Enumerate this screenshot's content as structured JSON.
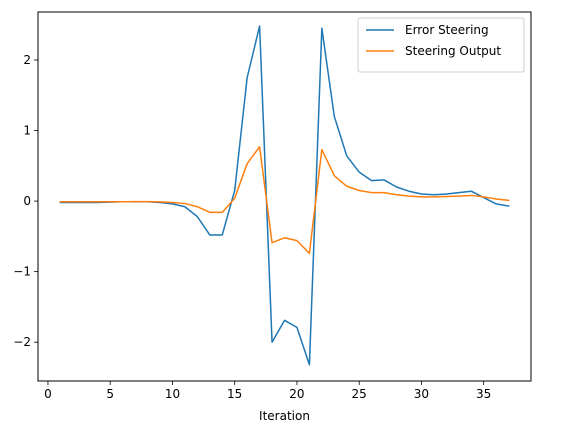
{
  "chart_data": {
    "type": "line",
    "title": "",
    "xlabel": "Iteration",
    "ylabel": "",
    "xlim": [
      -0.8,
      38.8
    ],
    "ylim": [
      -2.55,
      2.68
    ],
    "xticks": [
      0,
      5,
      10,
      15,
      20,
      25,
      30,
      35
    ],
    "yticks": [
      -2,
      -1,
      0,
      1,
      2
    ],
    "legend_position": "top-right",
    "grid": false,
    "x": [
      1,
      2,
      3,
      4,
      5,
      6,
      7,
      8,
      9,
      10,
      11,
      12,
      13,
      14,
      15,
      16,
      17,
      18,
      19,
      20,
      21,
      22,
      23,
      24,
      25,
      26,
      27,
      28,
      29,
      30,
      31,
      32,
      33,
      34,
      35,
      36,
      37
    ],
    "series": [
      {
        "name": "Error Steering",
        "color": "#1f77b4",
        "values": [
          -0.02,
          -0.02,
          -0.02,
          -0.02,
          -0.015,
          -0.01,
          -0.01,
          -0.01,
          -0.02,
          -0.04,
          -0.08,
          -0.22,
          -0.48,
          -0.48,
          0.15,
          1.75,
          2.48,
          -2.0,
          -1.69,
          -1.79,
          -2.32,
          2.45,
          1.2,
          0.64,
          0.41,
          0.29,
          0.3,
          0.2,
          0.14,
          0.1,
          0.09,
          0.1,
          0.12,
          0.14,
          0.05,
          -0.04,
          -0.07
        ]
      },
      {
        "name": "Steering Output",
        "color": "#ff7f0e",
        "values": [
          -0.01,
          -0.01,
          -0.01,
          -0.01,
          -0.01,
          -0.01,
          -0.008,
          -0.008,
          -0.012,
          -0.02,
          -0.035,
          -0.08,
          -0.16,
          -0.16,
          0.04,
          0.53,
          0.77,
          -0.59,
          -0.52,
          -0.56,
          -0.74,
          0.73,
          0.36,
          0.21,
          0.15,
          0.12,
          0.12,
          0.09,
          0.07,
          0.06,
          0.06,
          0.065,
          0.07,
          0.08,
          0.06,
          0.03,
          0.01
        ]
      }
    ]
  }
}
